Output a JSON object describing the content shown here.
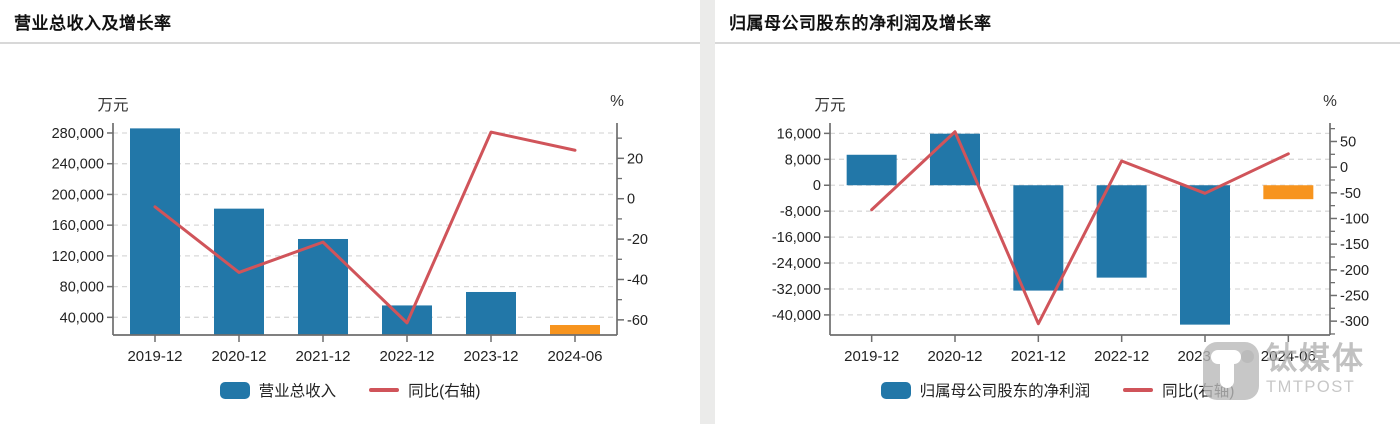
{
  "theme": {
    "bar_color": "#2277a8",
    "highlight_color": "#f7941e",
    "line_color": "#d0545a",
    "grid_color": "#d9d9d9",
    "axis_color": "#6e6e6e",
    "text_color": "#222222",
    "divider_color": "#ebebea"
  },
  "watermark": {
    "cn": "钛媒体",
    "en": "TMTPOST"
  },
  "chart_data": [
    {
      "type": "bar+line",
      "title": "营业总收入及增长率",
      "categories": [
        "2019-12",
        "2020-12",
        "2021-12",
        "2022-12",
        "2023-12",
        "2024-06"
      ],
      "series": [
        {
          "name": "营业总收入",
          "type": "bar",
          "axis": "left",
          "values": [
            286000,
            181500,
            142000,
            55500,
            73000,
            30000
          ],
          "point_colors": [
            "#2277a8",
            "#2277a8",
            "#2277a8",
            "#2277a8",
            "#2277a8",
            "#f7941e"
          ]
        },
        {
          "name": "同比(右轴)",
          "type": "line",
          "axis": "right",
          "values": [
            -4,
            -36.5,
            -21.5,
            -61.5,
            33,
            24
          ],
          "color": "#d0545a"
        }
      ],
      "left_axis": {
        "unit": "万元",
        "min": 17000,
        "max": 293000,
        "ticks": [
          {
            "v": 280000,
            "label": "280,000"
          },
          {
            "v": 240000,
            "label": "240,000"
          },
          {
            "v": 200000,
            "label": "200,000"
          },
          {
            "v": 160000,
            "label": "160,000"
          },
          {
            "v": 120000,
            "label": "120,000"
          },
          {
            "v": 80000,
            "label": "80,000"
          },
          {
            "v": 40000,
            "label": "40,000"
          }
        ]
      },
      "right_axis": {
        "unit": "%",
        "min": -67.5,
        "max": 37.5,
        "minor_step": 10,
        "ticks": [
          {
            "v": 20,
            "label": "20"
          },
          {
            "v": 0,
            "label": "0"
          },
          {
            "v": -20,
            "label": "-20"
          },
          {
            "v": -40,
            "label": "-40"
          },
          {
            "v": -60,
            "label": "-60"
          }
        ]
      },
      "grid": true,
      "legend_position": "bottom"
    },
    {
      "type": "bar+line",
      "title": "归属母公司股东的净利润及增长率",
      "categories": [
        "2019-12",
        "2020-12",
        "2021-12",
        "2022-12",
        "2023-12",
        "2024-06"
      ],
      "series": [
        {
          "name": "归属母公司股东的净利润",
          "type": "bar",
          "axis": "left",
          "values": [
            9400,
            15900,
            -32500,
            -28500,
            -43000,
            -4300
          ],
          "point_colors": [
            "#2277a8",
            "#2277a8",
            "#2277a8",
            "#2277a8",
            "#2277a8",
            "#f7941e"
          ]
        },
        {
          "name": "同比(右轴)",
          "type": "line",
          "axis": "right",
          "values": [
            -83,
            69,
            -305,
            12,
            -51,
            26
          ],
          "color": "#d0545a"
        }
      ],
      "left_axis": {
        "unit": "万元",
        "min": -46200,
        "max": 19200,
        "ticks": [
          {
            "v": 16000,
            "label": "16,000"
          },
          {
            "v": 8000,
            "label": "8,000"
          },
          {
            "v": 0,
            "label": "0"
          },
          {
            "v": -8000,
            "label": "-8,000"
          },
          {
            "v": -16000,
            "label": "-16,000"
          },
          {
            "v": -24000,
            "label": "-24,000"
          },
          {
            "v": -32000,
            "label": "-32,000"
          },
          {
            "v": -40000,
            "label": "-40,000"
          }
        ]
      },
      "right_axis": {
        "unit": "%",
        "min": -327,
        "max": 86,
        "minor_step": 25,
        "ticks": [
          {
            "v": 50,
            "label": "50"
          },
          {
            "v": 0,
            "label": "0"
          },
          {
            "v": -50,
            "label": "-50"
          },
          {
            "v": -100,
            "label": "-100"
          },
          {
            "v": -150,
            "label": "-150"
          },
          {
            "v": -200,
            "label": "-200"
          },
          {
            "v": -250,
            "label": "-250"
          },
          {
            "v": -300,
            "label": "-300"
          }
        ]
      },
      "grid": true,
      "legend_position": "bottom"
    }
  ]
}
